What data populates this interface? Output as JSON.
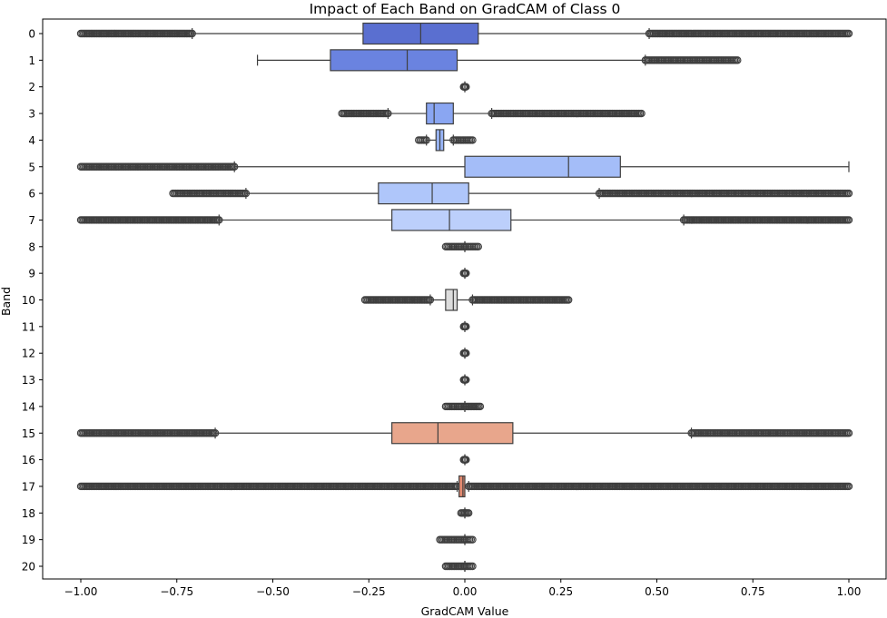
{
  "chart_data": {
    "type": "boxplot",
    "orientation": "horizontal",
    "title": "Impact of Each Band on GradCAM of Class 0",
    "xlabel": "GradCAM Value",
    "ylabel": "Band",
    "xlim": [
      -1.05,
      1.09
    ],
    "xticks": [
      -1.0,
      -0.75,
      -0.5,
      -0.25,
      0.0,
      0.25,
      0.5,
      0.75,
      1.0
    ],
    "xtick_labels": [
      "−1.00",
      "−0.75",
      "−0.50",
      "−0.25",
      "0.00",
      "0.25",
      "0.50",
      "0.75",
      "1.00"
    ],
    "categories": [
      "0",
      "1",
      "2",
      "3",
      "4",
      "5",
      "6",
      "7",
      "8",
      "9",
      "10",
      "11",
      "12",
      "13",
      "14",
      "15",
      "16",
      "17",
      "18",
      "19",
      "20"
    ],
    "grid": false,
    "palette": "coolwarm",
    "boxes": [
      {
        "band": "0",
        "q1": -0.265,
        "median": -0.115,
        "q3": 0.035,
        "whisker_low": -0.71,
        "whisker_high": 0.48,
        "color": "#5a6fd0",
        "outliers_low": [
          -1.0,
          -0.71
        ],
        "outliers_high": [
          0.48,
          1.0
        ]
      },
      {
        "band": "1",
        "q1": -0.35,
        "median": -0.15,
        "q3": -0.02,
        "whisker_low": -0.54,
        "whisker_high": 0.47,
        "color": "#6a83e0",
        "outliers_low": [],
        "outliers_high": [
          0.47,
          0.71
        ]
      },
      {
        "band": "2",
        "q1": 0.0,
        "median": 0.0,
        "q3": 0.0,
        "whisker_low": 0.0,
        "whisker_high": 0.0,
        "color": "#7a95ea",
        "outliers_low": [
          -0.003,
          0.0
        ],
        "outliers_high": [
          0.0,
          0.003
        ]
      },
      {
        "band": "3",
        "q1": -0.1,
        "median": -0.08,
        "q3": -0.03,
        "whisker_low": -0.2,
        "whisker_high": 0.07,
        "color": "#8aa6f2",
        "outliers_low": [
          -0.32,
          -0.2
        ],
        "outliers_high": [
          0.07,
          0.46
        ]
      },
      {
        "band": "4",
        "q1": -0.075,
        "median": -0.065,
        "q3": -0.055,
        "whisker_low": -0.1,
        "whisker_high": -0.03,
        "color": "#98b4f6",
        "outliers_low": [
          -0.12,
          -0.1
        ],
        "outliers_high": [
          -0.03,
          0.02
        ]
      },
      {
        "band": "5",
        "q1": 0.0,
        "median": 0.27,
        "q3": 0.405,
        "whisker_low": -0.6,
        "whisker_high": 1.0,
        "color": "#a4bdf8",
        "outliers_low": [
          -1.0,
          -0.6
        ],
        "outliers_high": []
      },
      {
        "band": "6",
        "q1": -0.225,
        "median": -0.085,
        "q3": 0.01,
        "whisker_low": -0.57,
        "whisker_high": 0.35,
        "color": "#afc6fa",
        "outliers_low": [
          -0.76,
          -0.57
        ],
        "outliers_high": [
          0.35,
          1.0
        ]
      },
      {
        "band": "7",
        "q1": -0.19,
        "median": -0.04,
        "q3": 0.12,
        "whisker_low": -0.64,
        "whisker_high": 0.57,
        "color": "#bccffb",
        "outliers_low": [
          -1.0,
          -0.64
        ],
        "outliers_high": [
          0.57,
          1.0
        ]
      },
      {
        "band": "8",
        "q1": 0.0,
        "median": 0.0,
        "q3": 0.0,
        "whisker_low": 0.0,
        "whisker_high": 0.0,
        "color": "#c8d6f8",
        "outliers_low": [
          -0.05,
          0.0
        ],
        "outliers_high": [
          0.0,
          0.035
        ]
      },
      {
        "band": "9",
        "q1": 0.0,
        "median": 0.0,
        "q3": 0.0,
        "whisker_low": 0.0,
        "whisker_high": 0.0,
        "color": "#d2daf2",
        "outliers_low": [
          -0.003,
          0.0
        ],
        "outliers_high": [
          0.0,
          0.003
        ]
      },
      {
        "band": "10",
        "q1": -0.05,
        "median": -0.03,
        "q3": -0.02,
        "whisker_low": -0.09,
        "whisker_high": 0.02,
        "color": "#dcdcdc",
        "outliers_low": [
          -0.26,
          -0.09
        ],
        "outliers_high": [
          0.02,
          0.27
        ]
      },
      {
        "band": "11",
        "q1": 0.0,
        "median": 0.0,
        "q3": 0.0,
        "whisker_low": 0.0,
        "whisker_high": 0.0,
        "color": "#e6d8d0",
        "outliers_low": [
          -0.003,
          0.0
        ],
        "outliers_high": [
          0.0,
          0.003
        ]
      },
      {
        "band": "12",
        "q1": 0.0,
        "median": 0.0,
        "q3": 0.0,
        "whisker_low": 0.0,
        "whisker_high": 0.0,
        "color": "#eed0c0",
        "outliers_low": [
          -0.003,
          0.0
        ],
        "outliers_high": [
          0.0,
          0.003
        ]
      },
      {
        "band": "13",
        "q1": 0.0,
        "median": 0.0,
        "q3": 0.0,
        "whisker_low": 0.0,
        "whisker_high": 0.0,
        "color": "#f2c4ae",
        "outliers_low": [
          -0.003,
          0.0
        ],
        "outliers_high": [
          0.0,
          0.003
        ]
      },
      {
        "band": "14",
        "q1": 0.0,
        "median": 0.0,
        "q3": 0.0,
        "whisker_low": 0.0,
        "whisker_high": 0.0,
        "color": "#f2b89e",
        "outliers_low": [
          -0.05,
          0.0
        ],
        "outliers_high": [
          0.0,
          0.04
        ]
      },
      {
        "band": "15",
        "q1": -0.19,
        "median": -0.07,
        "q3": 0.125,
        "whisker_low": -0.65,
        "whisker_high": 0.59,
        "color": "#e8a68c",
        "outliers_low": [
          -1.0,
          -0.65
        ],
        "outliers_high": [
          0.59,
          1.0
        ]
      },
      {
        "band": "16",
        "q1": 0.0,
        "median": 0.0,
        "q3": 0.0,
        "whisker_low": 0.0,
        "whisker_high": 0.0,
        "color": "#e89a80",
        "outliers_low": [
          -0.003,
          0.0
        ],
        "outliers_high": [
          0.0,
          0.003
        ]
      },
      {
        "band": "17",
        "q1": -0.015,
        "median": -0.005,
        "q3": 0.0,
        "whisker_low": -0.02,
        "whisker_high": 0.01,
        "color": "#e48a70",
        "outliers_low": [
          -1.0,
          -0.02
        ],
        "outliers_high": [
          0.01,
          1.0
        ]
      },
      {
        "band": "18",
        "q1": 0.0,
        "median": 0.0,
        "q3": 0.0,
        "whisker_low": 0.0,
        "whisker_high": 0.0,
        "color": "#de7a62",
        "outliers_low": [
          -0.01,
          0.0
        ],
        "outliers_high": [
          0.0,
          0.01
        ]
      },
      {
        "band": "19",
        "q1": 0.0,
        "median": 0.0,
        "q3": 0.0,
        "whisker_low": 0.0,
        "whisker_high": 0.0,
        "color": "#d86a54",
        "outliers_low": [
          -0.065,
          0.0
        ],
        "outliers_high": [
          0.0,
          0.02
        ]
      },
      {
        "band": "20",
        "q1": 0.0,
        "median": 0.0,
        "q3": 0.0,
        "whisker_low": 0.0,
        "whisker_high": 0.0,
        "color": "#d05a48",
        "outliers_low": [
          -0.05,
          0.0
        ],
        "outliers_high": [
          0.0,
          0.02
        ]
      }
    ]
  }
}
